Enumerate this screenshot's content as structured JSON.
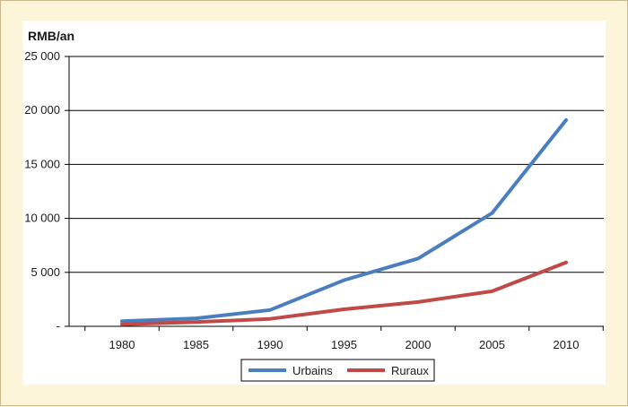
{
  "chart_data": {
    "type": "line",
    "unit_label": "RMB/an",
    "x": [
      1980,
      1985,
      1990,
      1995,
      2000,
      2005,
      2010
    ],
    "x_tick_labels": [
      "1980",
      "1985",
      "1990",
      "1995",
      "2000",
      "2005",
      "2010"
    ],
    "y_ticks": [
      0,
      5000,
      10000,
      15000,
      20000,
      25000
    ],
    "y_tick_labels": [
      "-",
      "5 000",
      "10 000",
      "15 000",
      "20 000",
      "25 000"
    ],
    "ylim": [
      0,
      25000
    ],
    "grid": "horizontal",
    "legend_position": "bottom",
    "series": [
      {
        "name": "Urbains",
        "color": "#4a7ebf",
        "values": [
          480,
          740,
          1510,
          4280,
          6280,
          10490,
          19110
        ]
      },
      {
        "name": "Ruraux",
        "color": "#bf4a47",
        "values": [
          190,
          400,
          690,
          1580,
          2250,
          3250,
          5920
        ]
      }
    ]
  }
}
